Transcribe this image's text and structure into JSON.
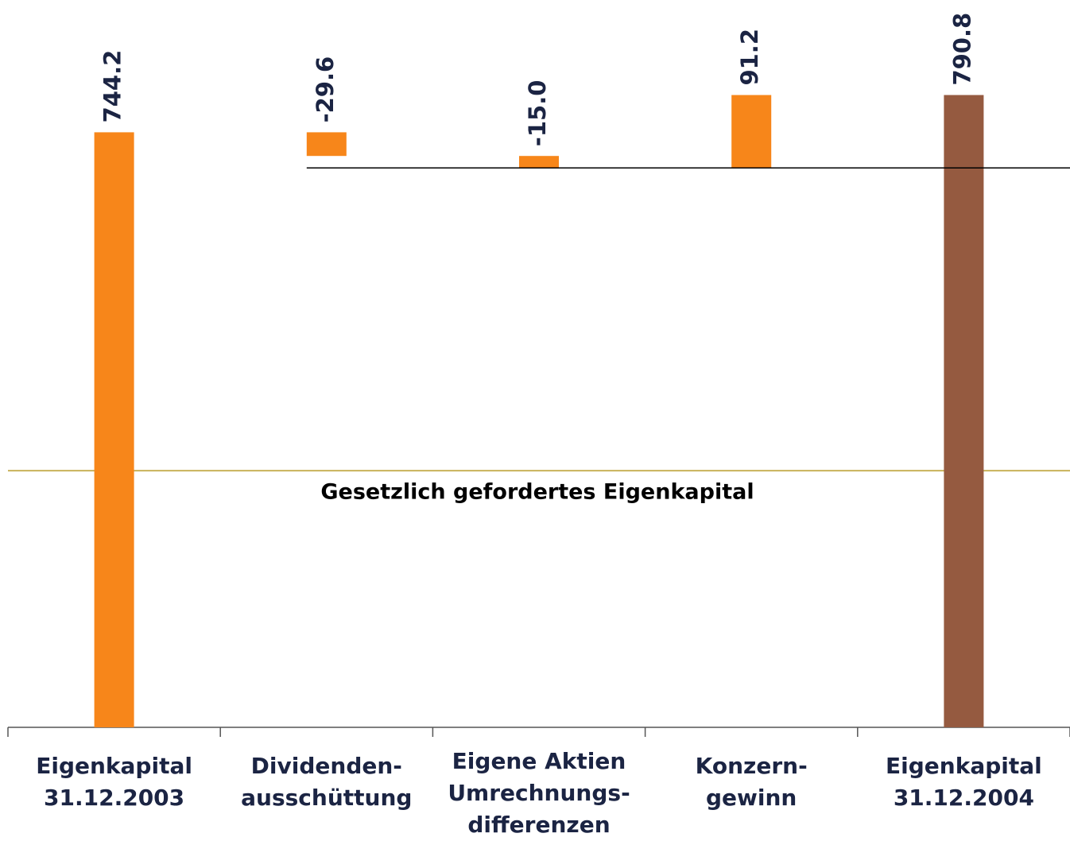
{
  "chart_data": {
    "type": "waterfall",
    "categories": [
      [
        "Eigenkapital",
        "31.12.2003"
      ],
      [
        "Dividenden-",
        "ausschüttung"
      ],
      [
        "Eigene Aktien",
        "Umrechnungs-",
        "differenzen"
      ],
      [
        "Konzern-",
        "gewinn"
      ],
      [
        "Eigenkapital",
        "31.12.2004"
      ]
    ],
    "values": [
      744.2,
      -29.6,
      -15.0,
      91.2,
      790.8
    ],
    "value_labels": [
      "744.2",
      "-29.6",
      "-15.0",
      "91.2",
      "790.8"
    ],
    "is_total": [
      true,
      false,
      false,
      false,
      true
    ],
    "colors": [
      "#f7861a",
      "#f7861a",
      "#f7861a",
      "#f7861a",
      "#955a40"
    ],
    "ylim": [
      0,
      850
    ],
    "reference_line": {
      "label": "Gesetzlich gefordertes Eigenkapital",
      "value": 321,
      "color": "#c8b25a"
    }
  }
}
